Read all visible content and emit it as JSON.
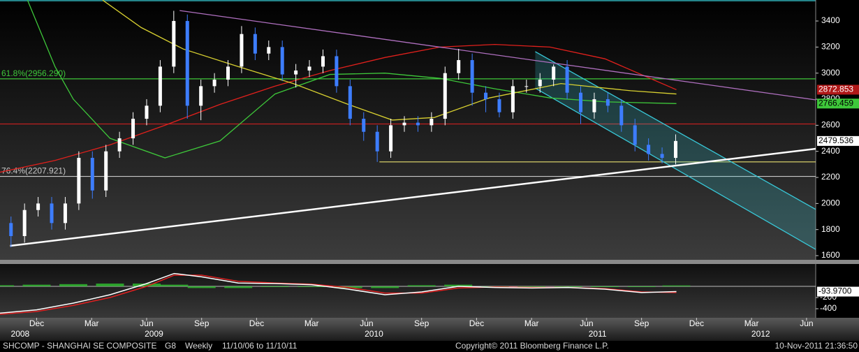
{
  "chart_data": {
    "type": "candlestick",
    "up_color": "#ffffff",
    "down_color": "#3d7dff",
    "x": [
      0.6,
      1.34,
      2.08,
      2.82,
      3.56,
      4.3,
      5.04,
      5.78,
      6.52,
      7.26,
      8.0,
      8.74,
      9.48,
      10.22,
      10.96,
      11.7,
      12.44,
      13.18,
      13.92,
      14.66,
      15.4,
      16.14,
      16.88,
      17.62,
      18.36,
      19.1,
      19.84,
      20.58,
      21.32,
      22.06,
      22.8,
      23.54,
      24.28,
      25.02,
      25.76,
      26.5,
      27.24,
      27.98,
      28.72,
      29.46,
      30.2,
      30.94,
      31.68,
      32.42,
      33.16,
      33.9,
      34.64,
      35.38,
      36.12,
      36.86
    ],
    "open": [
      1850,
      1750,
      1950,
      2000,
      1850,
      2000,
      2350,
      2100,
      2400,
      2500,
      2650,
      2750,
      3050,
      3400,
      2750,
      2900,
      2950,
      3050,
      3300,
      3150,
      3200,
      2990,
      3020,
      3050,
      3130,
      2900,
      2650,
      2550,
      2400,
      2600,
      2620,
      2600,
      2650,
      3000,
      3100,
      2850,
      2800,
      2700,
      2900,
      2900,
      2950,
      3050,
      2850,
      2700,
      2800,
      2750,
      2600,
      2450,
      2380,
      2350
    ],
    "high": [
      1900,
      2000,
      2050,
      2050,
      2050,
      2400,
      2400,
      2450,
      2550,
      2700,
      2800,
      3100,
      3478,
      3450,
      2950,
      3000,
      3100,
      3361,
      3350,
      3250,
      3250,
      3070,
      3100,
      3181,
      3180,
      2950,
      2700,
      2600,
      2650,
      2670,
      2670,
      2700,
      3050,
      3186,
      3150,
      2900,
      2850,
      2950,
      2950,
      3000,
      3067,
      3100,
      2900,
      2850,
      2850,
      2800,
      2650,
      2500,
      2430,
      2530
    ],
    "low": [
      1664,
      1700,
      1900,
      1800,
      1800,
      1950,
      2037,
      2050,
      2350,
      2450,
      2600,
      2700,
      3000,
      2650,
      2639,
      2850,
      2900,
      3000,
      3100,
      3100,
      2940,
      2890,
      2970,
      3000,
      2850,
      2600,
      2481,
      2319,
      2350,
      2550,
      2550,
      2550,
      2600,
      2950,
      2750,
      2700,
      2661,
      2650,
      2850,
      2850,
      2900,
      2800,
      2610,
      2650,
      2700,
      2550,
      2400,
      2330,
      2307,
      2300
    ],
    "close": [
      1750,
      1950,
      2000,
      1850,
      2000,
      2350,
      2100,
      2400,
      2500,
      2650,
      2750,
      3050,
      3400,
      2750,
      2900,
      2950,
      3050,
      3300,
      3150,
      3200,
      2990,
      3020,
      3050,
      3130,
      2900,
      2650,
      2550,
      2400,
      2600,
      2620,
      2600,
      2650,
      3000,
      3100,
      2850,
      2800,
      2700,
      2900,
      2900,
      2950,
      3050,
      2850,
      2700,
      2800,
      2750,
      2600,
      2450,
      2380,
      2350,
      2479.536
    ],
    "xlim": [
      0,
      44.5
    ],
    "ylim": [
      1568,
      3561
    ],
    "yticks": [
      1600,
      1800,
      2000,
      2200,
      2400,
      2600,
      2800,
      3000,
      3200,
      3400
    ],
    "xticks": [
      {
        "value": 2,
        "label": "Dec"
      },
      {
        "value": 5,
        "label": "Mar"
      },
      {
        "value": 8,
        "label": "Jun"
      },
      {
        "value": 11,
        "label": "Sep"
      },
      {
        "value": 14,
        "label": "Dec"
      },
      {
        "value": 17,
        "label": "Mar"
      },
      {
        "value": 20,
        "label": "Jun"
      },
      {
        "value": 23,
        "label": "Sep"
      },
      {
        "value": 26,
        "label": "Dec"
      },
      {
        "value": 29,
        "label": "Mar"
      },
      {
        "value": 32,
        "label": "Jun"
      },
      {
        "value": 35,
        "label": "Sep"
      },
      {
        "value": 38,
        "label": "Dec"
      },
      {
        "value": 41,
        "label": "Mar"
      },
      {
        "value": 44,
        "label": "Jun"
      }
    ],
    "year_ticks": [
      {
        "value": 1.1,
        "label": "2008"
      },
      {
        "value": 8.4,
        "label": "2009"
      },
      {
        "value": 20.4,
        "label": "2010"
      },
      {
        "value": 32.6,
        "label": "2011"
      },
      {
        "value": 41.5,
        "label": "2012"
      }
    ],
    "lines": [
      {
        "color": "#e0201c",
        "boxed": true,
        "x": [
          0,
          3,
          6,
          9,
          12,
          15,
          18,
          21,
          24,
          27,
          30,
          33,
          36.9
        ],
        "values": [
          2240,
          2330,
          2450,
          2600,
          2760,
          2900,
          3020,
          3120,
          3200,
          3220,
          3200,
          3110,
          2872.853
        ]
      },
      {
        "color": "#3ec83a",
        "boxed": true,
        "x": [
          1.5,
          3,
          4,
          6,
          9,
          12,
          15,
          18,
          21,
          24,
          27,
          30,
          33,
          36.9
        ],
        "values": [
          3560,
          3050,
          2800,
          2500,
          2350,
          2480,
          2840,
          2990,
          3000,
          2960,
          2880,
          2810,
          2780,
          2766.459
        ]
      },
      {
        "color": "#d8d030",
        "boxed": false,
        "x": [
          5.6,
          7.7,
          10,
          13,
          16,
          19,
          21.4,
          23.7,
          26.7,
          30.6,
          34.4,
          36.9
        ],
        "values": [
          3560,
          3350,
          3185,
          3050,
          2920,
          2760,
          2640,
          2660,
          2810,
          2920,
          2865,
          2840
        ]
      },
      {
        "color": "#ffffff",
        "boxed": false,
        "width": 2.5,
        "x": [
          0.55,
          44.5
        ],
        "values": [
          1675,
          2420
        ]
      },
      {
        "color": "#b070c0",
        "boxed": false,
        "x": [
          9.8,
          44.5
        ],
        "values": [
          3480,
          2795
        ]
      }
    ],
    "hlines": [
      {
        "value": 2956.29,
        "color": "#3ec83a",
        "label": "61.8%(2956.290)"
      },
      {
        "value": 2610,
        "color": "#c02020"
      },
      {
        "value": 2207.921,
        "color": "#c8c8c8",
        "label": "76.4%(2207.921)"
      },
      {
        "value": 2319,
        "color": "#e8e070",
        "from": 20.7
      }
    ],
    "channel": {
      "color": "#38c8d8",
      "upper": {
        "x": [
          29.2,
          44.5
        ],
        "values": [
          3165,
          1955
        ]
      },
      "lower": {
        "x": [
          29.2,
          44.5
        ],
        "values": [
          2885,
          1648
        ]
      }
    },
    "macd": {
      "ylim": [
        -562,
        400
      ],
      "yticks": [
        -200,
        -400
      ],
      "x": [
        0,
        2,
        4,
        6,
        8,
        9.5,
        11,
        13,
        15,
        17,
        19,
        21,
        23,
        25,
        27,
        29,
        31,
        33,
        35,
        36.9
      ],
      "histogram": {
        "color": "#30c030",
        "values": [
          20,
          30,
          40,
          50,
          50,
          30,
          -30,
          -30,
          -10,
          -10,
          -30,
          -30,
          20,
          30,
          -10,
          -10,
          0,
          -10,
          -10,
          16
        ]
      },
      "lines": [
        {
          "color": "#e02020",
          "values": [
            -500,
            -450,
            -340,
            -200,
            0,
            200,
            200,
            90,
            60,
            40,
            -20,
            -120,
            -120,
            -30,
            -10,
            -20,
            -20,
            -40,
            -100,
            -110
          ]
        },
        {
          "color": "#ffffff",
          "values": [
            -480,
            -420,
            -300,
            -150,
            50,
            230,
            170,
            60,
            50,
            30,
            -50,
            -150,
            -100,
            0,
            -20,
            -30,
            -20,
            -50,
            -110,
            -93.97
          ],
          "last_label": "-93.9700"
        }
      ]
    },
    "footer": {
      "ticker": "SHCOMP - SHANGHAI SE COMPOSITE",
      "period_code": "G8",
      "frequency": "Weekly",
      "range": "11/10/06 to 11/10/11",
      "copyright": "Copyright© 2011 Bloomberg Finance L.P.",
      "timestamp": "10-Nov-2011 21:36:50"
    }
  }
}
